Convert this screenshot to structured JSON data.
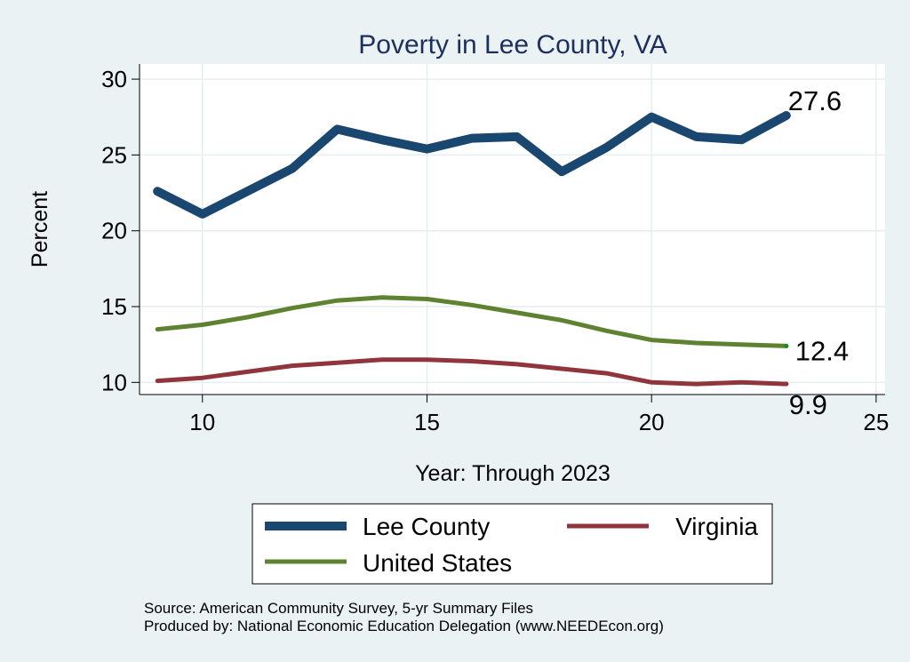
{
  "chart_data": {
    "type": "line",
    "title": "Poverty in Lee County, VA",
    "xlabel": "Year: Through 2023",
    "ylabel": "Percent",
    "xlim": [
      8.6,
      25.2
    ],
    "ylim": [
      9.2,
      31.0
    ],
    "xticks": [
      10,
      15,
      20,
      25
    ],
    "yticks": [
      10,
      15,
      20,
      25,
      30
    ],
    "grid": true,
    "legend_position": "bottom",
    "series": [
      {
        "name": "Lee County",
        "color": "#1a476f",
        "x": [
          9,
          10,
          11,
          12,
          13,
          14,
          15,
          16,
          17,
          18,
          19,
          20,
          21,
          22,
          23
        ],
        "values": [
          22.6,
          21.1,
          22.6,
          24.1,
          26.7,
          26.0,
          25.4,
          26.1,
          26.2,
          23.9,
          25.5,
          27.5,
          26.2,
          26.0,
          27.6
        ],
        "end_label": "27.6"
      },
      {
        "name": "United States",
        "color": "#5f8231",
        "x": [
          9,
          10,
          11,
          12,
          13,
          14,
          15,
          16,
          17,
          18,
          19,
          20,
          21,
          22,
          23
        ],
        "values": [
          13.5,
          13.8,
          14.3,
          14.9,
          15.4,
          15.6,
          15.5,
          15.1,
          14.6,
          14.1,
          13.4,
          12.8,
          12.6,
          12.5,
          12.4
        ],
        "end_label": "12.4"
      },
      {
        "name": "Virginia",
        "color": "#90353b",
        "x": [
          9,
          10,
          11,
          12,
          13,
          14,
          15,
          16,
          17,
          18,
          19,
          20,
          21,
          22,
          23
        ],
        "values": [
          10.1,
          10.3,
          10.7,
          11.1,
          11.3,
          11.5,
          11.5,
          11.4,
          11.2,
          10.9,
          10.6,
          10.0,
          9.9,
          10.0,
          9.9
        ],
        "end_label": "9.9"
      }
    ]
  },
  "notes": {
    "source": "Source: American Community Survey, 5-yr Summary Files",
    "produced_by": "Produced by: National Economic Education Delegation (www.NEEDEcon.org)"
  }
}
